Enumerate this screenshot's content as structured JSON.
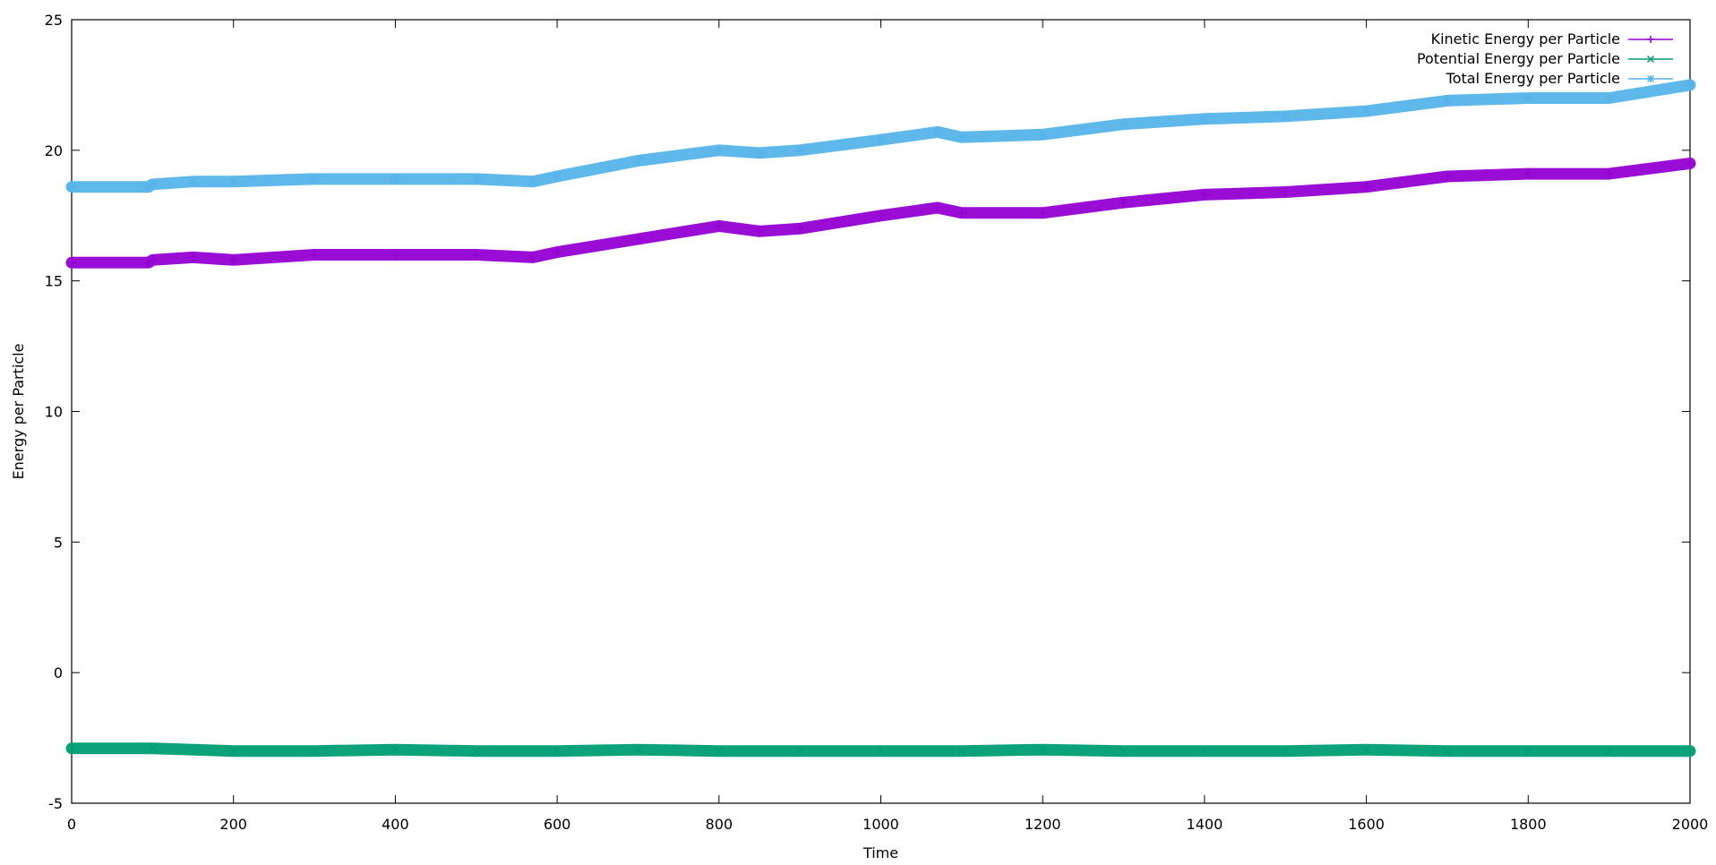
{
  "chart_data": {
    "type": "line",
    "xlabel": "Time",
    "ylabel": "Energy per Particle",
    "xlim": [
      0,
      2000
    ],
    "ylim": [
      -5,
      25
    ],
    "xticks": [
      "0",
      "200",
      "400",
      "600",
      "800",
      "1000",
      "1200",
      "1400",
      "1600",
      "1800",
      "2000"
    ],
    "yticks": [
      "-5",
      "0",
      "5",
      "10",
      "15",
      "20",
      "25"
    ],
    "grid": false,
    "legend_position": "top-right",
    "series": [
      {
        "name": "Kinetic Energy per Particle",
        "color": "#9400d3",
        "marker": "plus",
        "x": [
          0,
          95,
          100,
          150,
          200,
          300,
          400,
          500,
          570,
          600,
          700,
          800,
          850,
          900,
          1000,
          1070,
          1100,
          1200,
          1300,
          1400,
          1500,
          1600,
          1700,
          1800,
          1900,
          2000
        ],
        "y": [
          15.7,
          15.7,
          15.8,
          15.9,
          15.8,
          16.0,
          16.0,
          16.0,
          15.9,
          16.1,
          16.6,
          17.1,
          16.9,
          17.0,
          17.5,
          17.8,
          17.6,
          17.6,
          18.0,
          18.3,
          18.4,
          18.6,
          19.0,
          19.1,
          19.1,
          19.5
        ]
      },
      {
        "name": "Potential Energy per Particle",
        "color": "#009e73",
        "marker": "x",
        "x": [
          0,
          100,
          200,
          300,
          400,
          500,
          600,
          700,
          800,
          900,
          1000,
          1100,
          1200,
          1300,
          1400,
          1500,
          1600,
          1700,
          1800,
          1900,
          2000
        ],
        "y": [
          -2.9,
          -2.9,
          -3.0,
          -3.0,
          -2.95,
          -3.0,
          -3.0,
          -2.95,
          -3.0,
          -3.0,
          -3.0,
          -3.0,
          -2.95,
          -3.0,
          -3.0,
          -3.0,
          -2.95,
          -3.0,
          -3.0,
          -3.0,
          -3.0
        ]
      },
      {
        "name": "Total Energy per Particle",
        "color": "#56b4e9",
        "marker": "star",
        "x": [
          0,
          95,
          100,
          150,
          200,
          300,
          400,
          500,
          570,
          600,
          700,
          800,
          850,
          900,
          1000,
          1070,
          1100,
          1200,
          1300,
          1400,
          1500,
          1600,
          1700,
          1800,
          1900,
          2000
        ],
        "y": [
          18.6,
          18.6,
          18.7,
          18.8,
          18.8,
          18.9,
          18.9,
          18.9,
          18.8,
          19.0,
          19.6,
          20.0,
          19.9,
          20.0,
          20.4,
          20.7,
          20.5,
          20.6,
          21.0,
          21.2,
          21.3,
          21.5,
          21.9,
          22.0,
          22.0,
          22.5
        ]
      }
    ]
  }
}
